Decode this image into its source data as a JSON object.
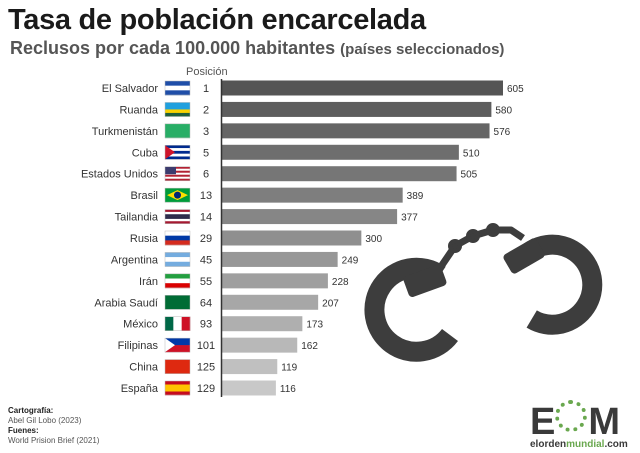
{
  "title": "Tasa de población encarcelada",
  "subtitle": "Reclusos por cada 100.000 habitantes",
  "subtitle_paren": "(países seleccionados)",
  "position_header": "Posición",
  "footer": {
    "credit_label": "Cartografía:",
    "credit_value": "Abel Gil Lobo (2023)",
    "source_label": "Fuenes:",
    "source_value": "World Prision Brief (2021)"
  },
  "logo": {
    "text_e": "E",
    "text_m": "M",
    "url_prefix": "elorden",
    "url_mid": "mundial",
    "url_suffix": ".com"
  },
  "colors": {
    "bar_dark": "#555555",
    "bar_light": "#c8c8c8",
    "handcuffs": "#3d3d3d",
    "accent": "#6aa84f"
  },
  "chart_data": {
    "type": "bar",
    "orientation": "horizontal",
    "title": "Tasa de población encarcelada",
    "xlabel": "Reclusos por cada 100.000 habitantes",
    "categories": [
      "El Salvador",
      "Ruanda",
      "Turkmenistán",
      "Cuba",
      "Estados Unidos",
      "Brasil",
      "Tailandia",
      "Rusia",
      "Argentina",
      "Irán",
      "Arabia Saudí",
      "México",
      "Filipinas",
      "China",
      "España"
    ],
    "positions": [
      1,
      2,
      3,
      5,
      6,
      13,
      14,
      29,
      45,
      55,
      64,
      93,
      101,
      125,
      129
    ],
    "values": [
      605,
      580,
      576,
      510,
      505,
      389,
      377,
      300,
      249,
      228,
      207,
      173,
      162,
      119,
      116
    ],
    "xlim": [
      0,
      605
    ],
    "grid": false,
    "flags": [
      {
        "dir": "h",
        "stripes": [
          "#1f4ea8",
          "#ffffff",
          "#1f4ea8"
        ]
      },
      {
        "dir": "h",
        "stripes": [
          "#20a0de",
          "#20a0de",
          "#fad201",
          "#20603d"
        ]
      },
      {
        "dir": "h",
        "stripes": [
          "#28ae66"
        ]
      },
      {
        "dir": "h",
        "stripes": [
          "#002a8f",
          "#ffffff",
          "#002a8f",
          "#ffffff",
          "#002a8f"
        ],
        "tri": "#cf142b"
      },
      {
        "dir": "h",
        "stripes": [
          "#b22234",
          "#ffffff",
          "#b22234",
          "#ffffff",
          "#b22234",
          "#ffffff",
          "#b22234"
        ],
        "canton": "#3c3b6e"
      },
      {
        "dir": "h",
        "stripes": [
          "#009c3b"
        ],
        "diamond": "#ffdf00"
      },
      {
        "dir": "h",
        "stripes": [
          "#a51931",
          "#ffffff",
          "#2d2a4a",
          "#2d2a4a",
          "#ffffff",
          "#a51931"
        ]
      },
      {
        "dir": "h",
        "stripes": [
          "#ffffff",
          "#0039a6",
          "#d52b1e"
        ]
      },
      {
        "dir": "h",
        "stripes": [
          "#74acdf",
          "#ffffff",
          "#74acdf"
        ]
      },
      {
        "dir": "h",
        "stripes": [
          "#239f40",
          "#ffffff",
          "#da0000"
        ]
      },
      {
        "dir": "h",
        "stripes": [
          "#006c35"
        ]
      },
      {
        "dir": "v",
        "stripes": [
          "#006847",
          "#ffffff",
          "#ce1126"
        ]
      },
      {
        "dir": "h",
        "stripes": [
          "#0038a8",
          "#ce1126"
        ],
        "tri": "#ffffff"
      },
      {
        "dir": "h",
        "stripes": [
          "#de2910"
        ]
      },
      {
        "dir": "h",
        "stripes": [
          "#c60b1e",
          "#ffc400",
          "#ffc400",
          "#c60b1e"
        ]
      }
    ]
  }
}
